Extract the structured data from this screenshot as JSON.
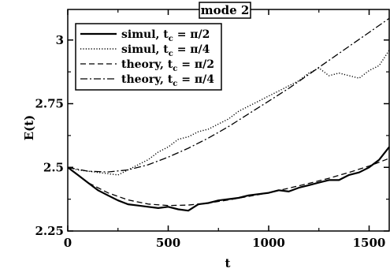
{
  "chart_data": {
    "type": "line",
    "title": "mode 2",
    "xlabel": "t",
    "ylabel": "E(t)",
    "xlim": [
      0,
      1600
    ],
    "ylim": [
      2.25,
      3.12
    ],
    "x_ticks": [
      0,
      500,
      1000,
      1500
    ],
    "x_tick_labels": [
      "0",
      "500",
      "1000",
      "1500"
    ],
    "y_ticks": [
      2.25,
      2.5,
      2.75,
      3
    ],
    "y_tick_labels": [
      "2.25",
      "2.5",
      "2.75",
      "3"
    ],
    "legend_position": "top-left",
    "series": [
      {
        "name": "simul, t_c = π/2",
        "legend_main": "simul, t",
        "legend_sub": "c",
        "legend_rest": " = π/2",
        "style": "solid",
        "x": [
          0,
          50,
          100,
          150,
          200,
          250,
          300,
          350,
          400,
          450,
          500,
          550,
          600,
          650,
          700,
          750,
          800,
          850,
          900,
          950,
          1000,
          1050,
          1100,
          1150,
          1200,
          1250,
          1300,
          1350,
          1400,
          1450,
          1500,
          1550,
          1600
        ],
        "y": [
          2.5,
          2.47,
          2.44,
          2.41,
          2.39,
          2.37,
          2.355,
          2.35,
          2.345,
          2.34,
          2.345,
          2.335,
          2.33,
          2.355,
          2.36,
          2.37,
          2.375,
          2.38,
          2.39,
          2.395,
          2.4,
          2.41,
          2.405,
          2.42,
          2.43,
          2.44,
          2.45,
          2.45,
          2.47,
          2.48,
          2.5,
          2.53,
          2.58
        ]
      },
      {
        "name": "simul, t_c = π/4",
        "legend_main": "simul, t",
        "legend_sub": "c",
        "legend_rest": " = π/4",
        "style": "dotted",
        "x": [
          0,
          50,
          100,
          150,
          200,
          250,
          300,
          350,
          400,
          450,
          500,
          550,
          600,
          650,
          700,
          750,
          800,
          850,
          900,
          950,
          1000,
          1050,
          1100,
          1150,
          1200,
          1250,
          1300,
          1350,
          1400,
          1450,
          1500,
          1550,
          1600
        ],
        "y": [
          2.5,
          2.49,
          2.485,
          2.48,
          2.475,
          2.47,
          2.49,
          2.51,
          2.53,
          2.56,
          2.58,
          2.61,
          2.62,
          2.64,
          2.65,
          2.67,
          2.69,
          2.72,
          2.74,
          2.76,
          2.78,
          2.8,
          2.82,
          2.84,
          2.87,
          2.89,
          2.86,
          2.87,
          2.86,
          2.85,
          2.88,
          2.9,
          2.96
        ]
      },
      {
        "name": "theory, t_c = π/2",
        "legend_main": "theory, t",
        "legend_sub": "c",
        "legend_rest": " = π/2",
        "style": "dashed",
        "x": [
          0,
          100,
          200,
          300,
          400,
          500,
          600,
          700,
          800,
          900,
          1000,
          1100,
          1200,
          1300,
          1400,
          1500,
          1600
        ],
        "y": [
          2.5,
          2.44,
          2.4,
          2.372,
          2.356,
          2.35,
          2.352,
          2.36,
          2.372,
          2.386,
          2.4,
          2.418,
          2.437,
          2.457,
          2.48,
          2.505,
          2.535
        ]
      },
      {
        "name": "theory, t_c = π/4",
        "legend_main": "theory, t",
        "legend_sub": "c",
        "legend_rest": " = π/4",
        "style": "dashdot",
        "x": [
          0,
          100,
          200,
          300,
          400,
          500,
          600,
          700,
          800,
          900,
          1000,
          1100,
          1200,
          1300,
          1400,
          1500,
          1600
        ],
        "y": [
          2.5,
          2.485,
          2.482,
          2.49,
          2.51,
          2.54,
          2.575,
          2.615,
          2.66,
          2.71,
          2.76,
          2.81,
          2.865,
          2.92,
          2.975,
          3.03,
          3.085
        ]
      }
    ]
  }
}
